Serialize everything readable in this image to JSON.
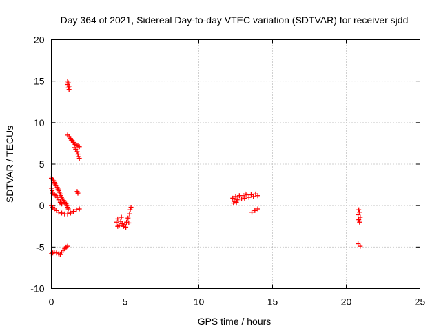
{
  "chart_data": {
    "type": "scatter",
    "title": "Day 364 of 2021, Sidereal Day-to-day VTEC variation (SDTVAR) for receiver sjdd",
    "xlabel": "GPS time / hours",
    "ylabel": "SDTVAR / TECUs",
    "xlim": [
      0,
      25
    ],
    "ylim": [
      -10,
      20
    ],
    "x_ticks": [
      0,
      5,
      10,
      15,
      20,
      25
    ],
    "y_ticks": [
      -10,
      -5,
      0,
      5,
      10,
      15,
      20
    ],
    "x_tick_labels": [
      "0",
      "5",
      "10",
      "15",
      "20",
      "25"
    ],
    "y_tick_labels": [
      "-10",
      "-5",
      "0",
      "5",
      "10",
      "15",
      "20"
    ],
    "grid": true,
    "marker": "plus",
    "color": "#ff0000",
    "series": [
      {
        "name": "sdtvar",
        "points": [
          [
            1.1,
            15.0
          ],
          [
            1.15,
            14.8
          ],
          [
            1.1,
            14.6
          ],
          [
            1.2,
            14.4
          ],
          [
            1.15,
            14.2
          ],
          [
            1.2,
            14.0
          ],
          [
            1.1,
            8.5
          ],
          [
            1.2,
            8.3
          ],
          [
            1.3,
            8.1
          ],
          [
            1.35,
            7.9
          ],
          [
            1.45,
            7.8
          ],
          [
            1.5,
            7.6
          ],
          [
            1.6,
            7.4
          ],
          [
            1.7,
            7.3
          ],
          [
            1.8,
            7.2
          ],
          [
            1.9,
            7.1
          ],
          [
            1.55,
            7.0
          ],
          [
            1.65,
            6.8
          ],
          [
            1.75,
            6.5
          ],
          [
            1.8,
            6.2
          ],
          [
            1.85,
            5.9
          ],
          [
            1.9,
            5.7
          ],
          [
            0.0,
            3.3
          ],
          [
            0.1,
            3.2
          ],
          [
            0.15,
            3.0
          ],
          [
            0.2,
            2.8
          ],
          [
            0.25,
            2.6
          ],
          [
            0.3,
            2.4
          ],
          [
            0.4,
            2.2
          ],
          [
            0.45,
            2.0
          ],
          [
            0.5,
            1.8
          ],
          [
            0.55,
            1.6
          ],
          [
            0.6,
            1.4
          ],
          [
            0.65,
            1.2
          ],
          [
            0.7,
            1.0
          ],
          [
            0.75,
            0.8
          ],
          [
            0.85,
            0.6
          ],
          [
            0.9,
            0.4
          ],
          [
            1.0,
            0.2
          ],
          [
            1.05,
            0.0
          ],
          [
            1.1,
            -0.2
          ],
          [
            1.15,
            -0.4
          ],
          [
            0.0,
            2.1
          ],
          [
            0.05,
            1.8
          ],
          [
            0.1,
            1.5
          ],
          [
            0.2,
            1.3
          ],
          [
            0.3,
            1.2
          ],
          [
            0.4,
            1.0
          ],
          [
            0.5,
            0.7
          ],
          [
            0.6,
            0.4
          ],
          [
            0.7,
            0.2
          ],
          [
            0.0,
            0.0
          ],
          [
            0.1,
            -0.2
          ],
          [
            0.2,
            -0.4
          ],
          [
            0.35,
            -0.6
          ],
          [
            0.5,
            -0.8
          ],
          [
            0.7,
            -0.9
          ],
          [
            0.9,
            -1.0
          ],
          [
            1.1,
            -1.0
          ],
          [
            1.3,
            -0.9
          ],
          [
            1.5,
            -0.7
          ],
          [
            1.7,
            -0.5
          ],
          [
            1.9,
            -0.4
          ],
          [
            1.75,
            1.7
          ],
          [
            1.8,
            1.5
          ],
          [
            0.0,
            -5.8
          ],
          [
            0.1,
            -5.7
          ],
          [
            0.2,
            -5.6
          ],
          [
            0.35,
            -5.7
          ],
          [
            0.5,
            -5.8
          ],
          [
            0.6,
            -5.9
          ],
          [
            0.7,
            -5.6
          ],
          [
            0.8,
            -5.4
          ],
          [
            0.9,
            -5.2
          ],
          [
            1.0,
            -5.0
          ],
          [
            1.1,
            -4.9
          ],
          [
            4.4,
            -2.0
          ],
          [
            4.5,
            -1.6
          ],
          [
            4.6,
            -2.4
          ],
          [
            4.7,
            -1.9
          ],
          [
            4.8,
            -2.2
          ],
          [
            4.9,
            -2.5
          ],
          [
            5.0,
            -2.3
          ],
          [
            5.1,
            -2.0
          ],
          [
            5.2,
            -1.5
          ],
          [
            5.3,
            -1.0
          ],
          [
            5.35,
            -0.5
          ],
          [
            5.4,
            -0.2
          ],
          [
            4.5,
            -2.5
          ],
          [
            4.75,
            -1.4
          ],
          [
            5.05,
            -2.6
          ],
          [
            5.25,
            -2.1
          ],
          [
            12.3,
            0.9
          ],
          [
            12.4,
            0.5
          ],
          [
            12.5,
            1.1
          ],
          [
            12.6,
            0.7
          ],
          [
            12.75,
            1.2
          ],
          [
            12.9,
            0.8
          ],
          [
            13.0,
            1.2
          ],
          [
            13.1,
            0.9
          ],
          [
            13.25,
            1.3
          ],
          [
            13.4,
            1.0
          ],
          [
            13.55,
            1.3
          ],
          [
            13.7,
            1.1
          ],
          [
            13.85,
            1.4
          ],
          [
            14.0,
            1.2
          ],
          [
            12.35,
            0.3
          ],
          [
            12.55,
            0.4
          ],
          [
            13.15,
            1.4
          ],
          [
            13.6,
            -0.8
          ],
          [
            13.8,
            -0.6
          ],
          [
            14.0,
            -0.4
          ],
          [
            20.85,
            -0.5
          ],
          [
            20.9,
            -0.8
          ],
          [
            20.8,
            -1.1
          ],
          [
            20.95,
            -1.4
          ],
          [
            20.85,
            -1.7
          ],
          [
            20.9,
            -2.0
          ],
          [
            20.8,
            -4.6
          ],
          [
            20.95,
            -4.9
          ]
        ]
      }
    ]
  }
}
